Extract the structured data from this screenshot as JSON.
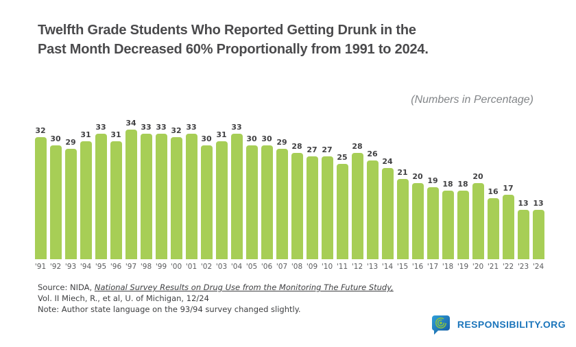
{
  "title": {
    "line1": "Twelfth Grade Students Who Reported Getting Drunk in the",
    "line2": "Past Month Decreased 60% Proportionally from 1991 to 2024."
  },
  "subtitle": "(Numbers in Percentage)",
  "chart_data": {
    "type": "bar",
    "title": "Twelfth Grade Students Who Reported Getting Drunk in the Past Month Decreased 60% Proportionally from 1991 to 2024.",
    "subtitle": "(Numbers in Percentage)",
    "categories": [
      "'91",
      "'92",
      "'93",
      "'94",
      "'95",
      "'96",
      "'97",
      "'98",
      "'99",
      "'00",
      "'01",
      "'02",
      "'03",
      "'04",
      "'05",
      "'06",
      "'07",
      "'08",
      "'09",
      "'10",
      "'11",
      "'12",
      "'13",
      "'14",
      "'15",
      "'16",
      "'17",
      "'18",
      "'19",
      "'20",
      "'21",
      "'22",
      "'23",
      "'24"
    ],
    "values": [
      32,
      30,
      29,
      31,
      33,
      31,
      34,
      33,
      33,
      32,
      33,
      30,
      31,
      33,
      30,
      30,
      29,
      28,
      27,
      27,
      25,
      28,
      26,
      24,
      21,
      20,
      19,
      18,
      18,
      20,
      16,
      17,
      13,
      13
    ],
    "xlabel": "",
    "ylabel": "",
    "ylim": [
      0,
      34
    ],
    "grid": false,
    "legend": "none",
    "data_labels": true,
    "bar_color": "#a7ce56",
    "label_color": "#414143"
  },
  "source": {
    "prefix": "Source: NIDA, ",
    "citation": "National Survey Results on Drug Use from the Monitoring The Future Study,",
    "line2": "Vol. II Miech, R., et al, U. of Michigan, 12/24",
    "note": "Note: Author state language on the 93/94 survey changed slightly."
  },
  "logo": {
    "text": "RESPONSIBILITY.ORG",
    "brand_color": "#1b75bb",
    "icon": "speech-bubble-spiral-icon",
    "icon_spiral_color": "#8dc63f"
  }
}
